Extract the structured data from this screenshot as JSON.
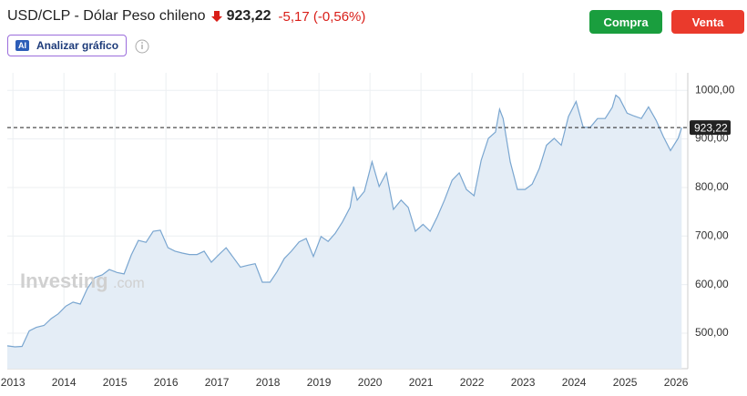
{
  "header": {
    "title": "USD/CLP - Dólar Peso chileno",
    "price": "923,22",
    "change": "-5,17 (-0,56%)",
    "ai_badge": "AI",
    "analyze": "Analizar gráfico"
  },
  "buttons": {
    "buy": "Compra",
    "sell": "Venta"
  },
  "watermark": {
    "brand": "Investing",
    "suffix": ".com"
  },
  "chart_data": {
    "type": "area",
    "x": [
      2012.89,
      2013.04,
      2013.18,
      2013.32,
      2013.46,
      2013.61,
      2013.75,
      2013.89,
      2014.04,
      2014.18,
      2014.32,
      2014.46,
      2014.61,
      2014.75,
      2014.89,
      2015.04,
      2015.18,
      2015.32,
      2015.46,
      2015.61,
      2015.75,
      2015.89,
      2016.04,
      2016.18,
      2016.32,
      2016.46,
      2016.61,
      2016.75,
      2016.89,
      2017.04,
      2017.18,
      2017.32,
      2017.46,
      2017.61,
      2017.75,
      2017.89,
      2018.04,
      2018.18,
      2018.32,
      2018.46,
      2018.61,
      2018.75,
      2018.89,
      2019.04,
      2019.18,
      2019.32,
      2019.46,
      2019.61,
      2019.68,
      2019.75,
      2019.89,
      2020.04,
      2020.18,
      2020.32,
      2020.46,
      2020.61,
      2020.75,
      2020.89,
      2021.04,
      2021.18,
      2021.32,
      2021.46,
      2021.61,
      2021.75,
      2021.89,
      2022.04,
      2022.18,
      2022.32,
      2022.46,
      2022.54,
      2022.61,
      2022.75,
      2022.89,
      2023.04,
      2023.18,
      2023.32,
      2023.46,
      2023.61,
      2023.75,
      2023.89,
      2024.04,
      2024.18,
      2024.32,
      2024.46,
      2024.61,
      2024.75,
      2024.82,
      2024.89,
      2025.04,
      2025.18,
      2025.32,
      2025.46,
      2025.61,
      2025.75,
      2025.89,
      2026.04,
      2026.11
    ],
    "series": [
      {
        "name": "USD/CLP",
        "color": "#7aa6d0",
        "fill": "#e4edf6",
        "values": [
          474,
          472,
          473,
          505,
          512,
          516,
          530,
          540,
          556,
          564,
          560,
          592,
          615,
          620,
          631,
          625,
          622,
          661,
          691,
          687,
          710,
          712,
          676,
          669,
          665,
          662,
          662,
          669,
          646,
          662,
          676,
          656,
          636,
          640,
          643,
          605,
          605,
          627,
          654,
          669,
          688,
          695,
          658,
          699,
          689,
          706,
          729,
          759,
          802,
          774,
          792,
          853,
          802,
          830,
          755,
          774,
          759,
          710,
          724,
          710,
          740,
          774,
          815,
          830,
          796,
          783,
          856,
          901,
          914,
          961,
          942,
          853,
          796,
          796,
          807,
          839,
          887,
          901,
          887,
          946,
          977,
          924,
          924,
          942,
          942,
          965,
          990,
          984,
          953,
          947,
          942,
          966,
          938,
          905,
          876,
          901,
          923.22
        ]
      }
    ],
    "last_price": {
      "value": 923.22,
      "label": "923,22"
    },
    "xlim": [
      2012.89,
      2026.23
    ],
    "xticks": [
      2013,
      2014,
      2015,
      2016,
      2017,
      2018,
      2019,
      2020,
      2021,
      2022,
      2023,
      2024,
      2025,
      2026
    ],
    "ylim": [
      427,
      1036
    ],
    "yticks": [
      {
        "value": 500,
        "label": "500,00"
      },
      {
        "value": 600,
        "label": "600,00"
      },
      {
        "value": 700,
        "label": "700,00"
      },
      {
        "value": 800,
        "label": "800,00"
      },
      {
        "value": 900,
        "label": "900,00"
      },
      {
        "value": 1000,
        "label": "1000,00"
      }
    ],
    "grid": true
  }
}
